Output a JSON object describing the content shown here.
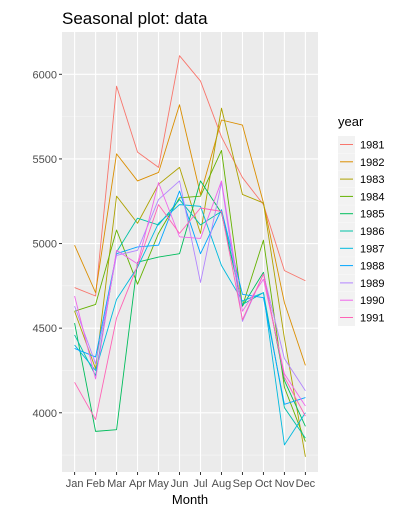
{
  "chart_data": {
    "type": "line",
    "title": "Seasonal plot: data",
    "xlabel": "Month",
    "ylabel": "",
    "categories": [
      "Jan",
      "Feb",
      "Mar",
      "Apr",
      "May",
      "Jun",
      "Jul",
      "Aug",
      "Sep",
      "Oct",
      "Nov",
      "Dec"
    ],
    "ylim": [
      3650,
      6250
    ],
    "yticks": [
      4000,
      4500,
      5000,
      5500,
      6000
    ],
    "grid": true,
    "legend": {
      "title": "year",
      "placement": "right"
    },
    "series": [
      {
        "name": "1981",
        "color": "#F8766D",
        "values": [
          4740,
          4690,
          5930,
          5540,
          5450,
          6110,
          5960,
          5630,
          5390,
          5230,
          4840,
          4780
        ]
      },
      {
        "name": "1982",
        "color": "#DB8E00",
        "values": [
          4990,
          4710,
          5530,
          5370,
          5420,
          5820,
          5290,
          5730,
          5700,
          5240,
          4650,
          4280
        ]
      },
      {
        "name": "1983",
        "color": "#AEA200",
        "values": [
          4600,
          4260,
          5280,
          5120,
          5350,
          5450,
          5060,
          5800,
          5290,
          5240,
          4440,
          3740
        ]
      },
      {
        "name": "1984",
        "color": "#64B200",
        "values": [
          4600,
          4640,
          5080,
          4760,
          5060,
          5270,
          5280,
          5550,
          4630,
          5020,
          4150,
          3830
        ]
      },
      {
        "name": "1985",
        "color": "#00BD5C",
        "values": [
          4530,
          3890,
          3900,
          4890,
          4920,
          4940,
          5370,
          5180,
          4630,
          4830,
          4190,
          3920
        ]
      },
      {
        "name": "1986",
        "color": "#00C1A7",
        "values": [
          4460,
          4220,
          4950,
          5150,
          5110,
          5260,
          5110,
          5190,
          4640,
          4710,
          4030,
          3850
        ]
      },
      {
        "name": "1987",
        "color": "#00BADE",
        "values": [
          4400,
          4250,
          4670,
          4860,
          5120,
          5230,
          5220,
          4870,
          4660,
          4710,
          3810,
          4000
        ]
      },
      {
        "name": "1988",
        "color": "#00A6FF",
        "values": [
          4380,
          4330,
          4940,
          4980,
          4990,
          5310,
          4940,
          5200,
          4700,
          4680,
          4050,
          4090
        ]
      },
      {
        "name": "1989",
        "color": "#B385FF",
        "values": [
          4630,
          4290,
          4930,
          4960,
          5260,
          5370,
          4770,
          5360,
          4540,
          4820,
          4320,
          4130
        ]
      },
      {
        "name": "1990",
        "color": "#EF67EB",
        "values": [
          4690,
          4200,
          4960,
          4880,
          5360,
          5040,
          5030,
          5370,
          4600,
          4790,
          4230,
          4040
        ]
      },
      {
        "name": "1991",
        "color": "#FF63B6",
        "values": [
          4180,
          3960,
          4560,
          4870,
          5230,
          5060,
          5210,
          5190,
          4550,
          4820,
          4210,
          3980
        ]
      }
    ]
  }
}
